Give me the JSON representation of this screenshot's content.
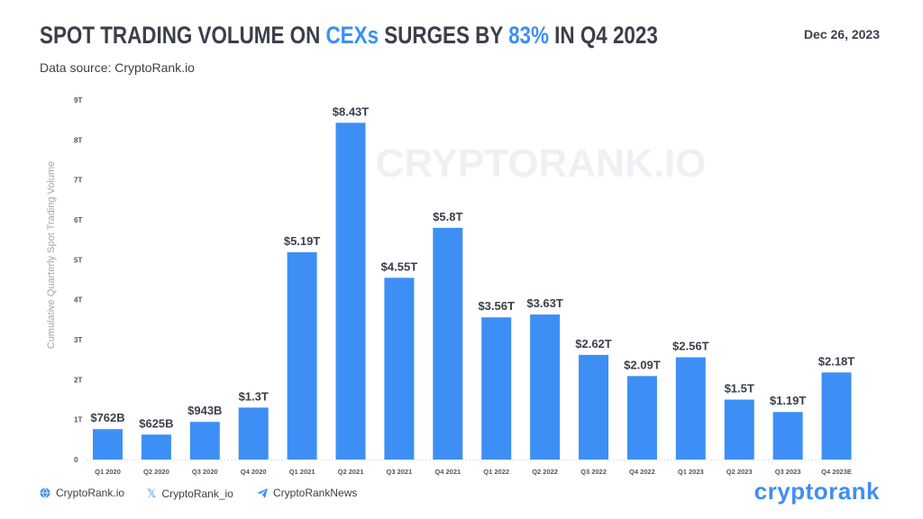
{
  "header": {
    "title_parts": [
      "SPOT TRADING VOLUME ON ",
      "CEXs",
      " SURGES BY ",
      "83%",
      " IN Q4 2023"
    ],
    "date": "Dec 26, 2023",
    "source": "Data source: CryptoRank.io"
  },
  "watermark": "CRYPTORANK.IO",
  "footer": {
    "website": "CryptoRank.io",
    "twitter": "CryptoRank_io",
    "telegram": "CryptoRankNews",
    "logo": "cryptorank"
  },
  "colors": {
    "bar": "#3d8ff5",
    "accent": "#3d8ff5",
    "text": "#3a3f4a"
  },
  "chart_data": {
    "type": "bar",
    "title": "SPOT TRADING VOLUME ON CEXs SURGES BY 83% IN Q4 2023",
    "ylabel": "Cumulative Quarterly Spot Trading Volume",
    "xlabel": "",
    "ylim": [
      0,
      9
    ],
    "yticks": [
      "0",
      "1T",
      "2T",
      "3T",
      "4T",
      "5T",
      "6T",
      "7T",
      "8T",
      "9T"
    ],
    "grid": false,
    "categories": [
      "Q1 2020",
      "Q2 2020",
      "Q3 2020",
      "Q4 2020",
      "Q1 2021",
      "Q2 2021",
      "Q3 2021",
      "Q4 2021",
      "Q1 2022",
      "Q2 2022",
      "Q3 2022",
      "Q4 2022",
      "Q1 2023",
      "Q2 2023",
      "Q3 2023",
      "Q4 2023E"
    ],
    "values": [
      0.762,
      0.625,
      0.943,
      1.3,
      5.19,
      8.43,
      4.55,
      5.8,
      3.56,
      3.63,
      2.62,
      2.09,
      2.56,
      1.5,
      1.19,
      2.18
    ],
    "data_labels": [
      "$762B",
      "$625B",
      "$943B",
      "$1.3T",
      "$5.19T",
      "$8.43T",
      "$4.55T",
      "$5.8T",
      "$3.56T",
      "$3.63T",
      "$2.62T",
      "$2.09T",
      "$2.56T",
      "$1.5T",
      "$1.19T",
      "$2.18T"
    ]
  }
}
